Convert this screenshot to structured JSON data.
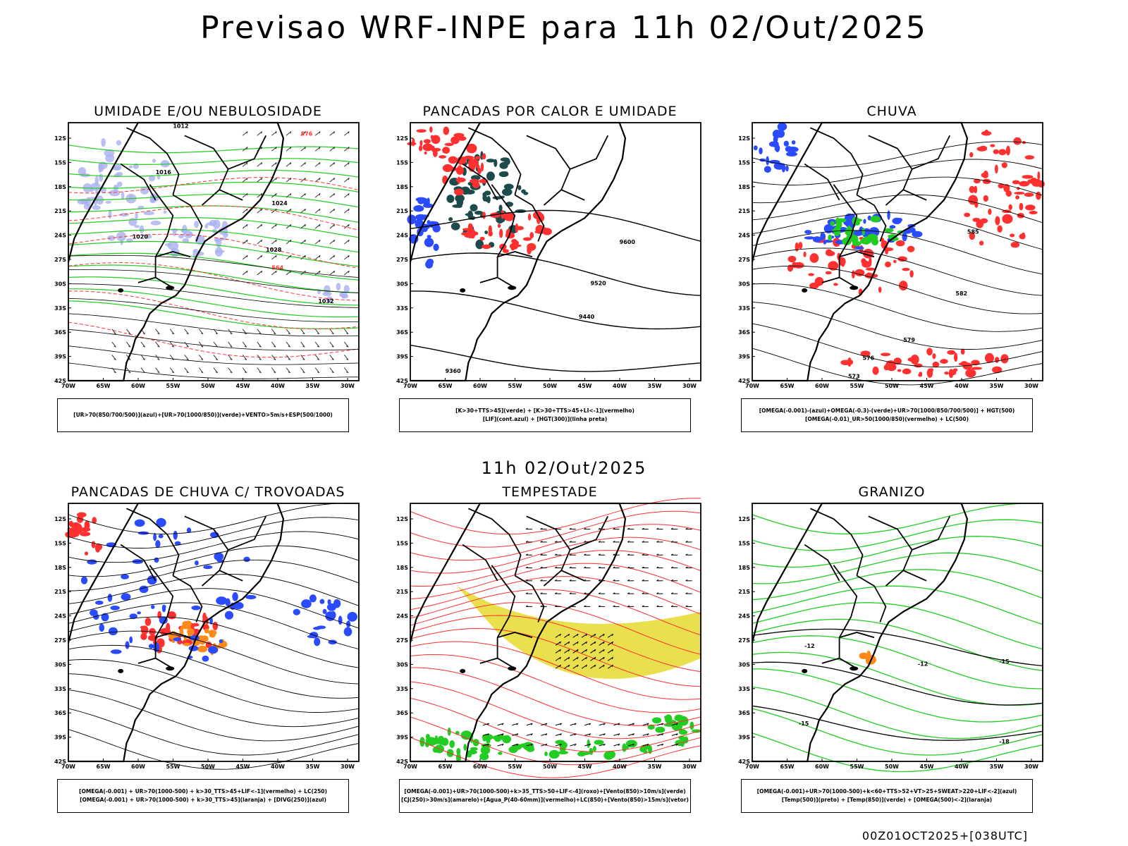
{
  "header": {
    "title": "Previsao WRF-INPE  para 11h 02/Out/2025",
    "subtime": "11h 02/Out/2025",
    "footer": "00Z01OCT2025+[038UTC]"
  },
  "axes": {
    "lat_labels": [
      "12S",
      "15S",
      "18S",
      "21S",
      "24S",
      "27S",
      "30S",
      "33S",
      "36S",
      "39S",
      "42S"
    ],
    "lon_labels": [
      "70W",
      "65W",
      "60W",
      "55W",
      "50W",
      "45W",
      "40W",
      "35W",
      "30W"
    ]
  },
  "panels": [
    {
      "id": "umidade",
      "title": "UMIDADE E/OU NEBULOSIDADE",
      "legend": [
        "[UR>70(850/700/500)](azul)+[UR>70(1000/850)](verde)+VENTO>5m/s+ESP(500/1000)"
      ],
      "labels": [
        "1012",
        "1016",
        "1020",
        "1024",
        "1028",
        "1032",
        "576",
        "564"
      ]
    },
    {
      "id": "pancadas-calor",
      "title": "PANCADAS POR CALOR E UMIDADE",
      "legend": [
        "[K>30+TTS>45](verde) + [K>30+TTS>45+LI<-1](vermelho)",
        "[LIF](cont.azul) + [HGT(300)](linha preta)"
      ],
      "labels": [
        "9600",
        "9520",
        "9440",
        "9360"
      ]
    },
    {
      "id": "chuva",
      "title": "CHUVA",
      "legend": [
        "[OMEGA(-0.001)-(azul)+OMEGA(-0.3)-(verde)+UR>70(1000/850/700/500)] + HGT(500)",
        "[OMEGA(-0.01)_UR>50(1000/850)(vermelho) + LC(500)"
      ],
      "labels": [
        "585",
        "582",
        "579",
        "576",
        "573"
      ]
    },
    {
      "id": "trovoadas",
      "title": "PANCADAS DE CHUVA C/ TROVOADAS",
      "legend": [
        "[OMEGA(-0.001) + UR>70(1000-500) + k>30_TTS>45+LIF<-1](vermelho) + LC(250)",
        "[OMEGA(-0.001) + UR>70(1000-500) + k>30_TTS>45](laranja) + [DIVG(250)](azul)"
      ],
      "labels": []
    },
    {
      "id": "tempestade",
      "title": "TEMPESTADE",
      "legend": [
        "[OMEGA(-0.001)+UR>70(1000-500)+k>35_TTS>50+LIF<-4](roxo)+[Vento(850)>10m/s](verde)",
        "[CJ(250)>30m/s](amarelo)+[Agua_P(40-60mm)](vermelho)+LC(850)+[Vento(850)>15m/s](vetor)"
      ],
      "labels": []
    },
    {
      "id": "granizo",
      "title": "GRANIZO",
      "legend": [
        "[OMEGA(-0.001)+UR>70(1000-500)+k<60+TTS>52+VT>25+SWEAT>220+LIF<-2](azul)",
        "[Temp(500)](preto) + [Temp(850)](verde) + [OMEGA(500)<-2](laranja)"
      ],
      "labels": [
        "-12",
        "-15",
        "-18"
      ]
    }
  ],
  "colors": {
    "blue": "#2b4bff",
    "green": "#22cc22",
    "red": "#ff3030",
    "orange": "#ff8a1a",
    "yellow": "#e8dc3a",
    "darkteal": "#1d4a4a",
    "lavender": "#aab0f0"
  }
}
